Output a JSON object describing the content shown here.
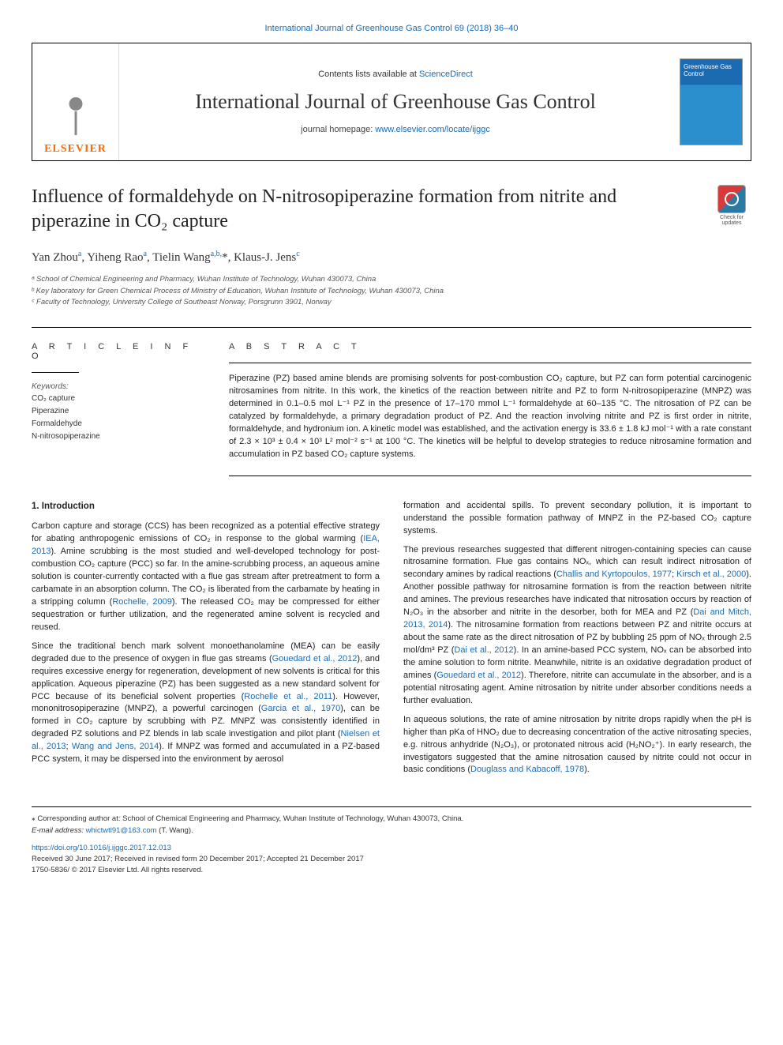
{
  "header": {
    "citation_link": "International Journal of Greenhouse Gas Control 69 (2018) 36–40",
    "contents_prefix": "Contents lists available at ",
    "contents_link": "ScienceDirect",
    "journal_name": "International Journal of Greenhouse Gas Control",
    "homepage_prefix": "journal homepage: ",
    "homepage_url": "www.elsevier.com/locate/ijggc",
    "elsevier_label": "ELSEVIER",
    "cover_title": "Greenhouse Gas Control"
  },
  "title": "Influence of formaldehyde on N-nitrosopiperazine formation from nitrite and piperazine in CO₂ capture",
  "updates_badge": "Check for updates",
  "authors_html": "Yan Zhou<sup>a</sup>, Yiheng Rao<sup>a</sup>, Tielin Wang<sup>a,b,</sup>*, Klaus-J. Jens<sup>c</sup>",
  "affiliations": [
    "ᵃ School of Chemical Engineering and Pharmacy, Wuhan Institute of Technology, Wuhan 430073, China",
    "ᵇ Key laboratory for Green Chemical Process of Ministry of Education, Wuhan Institute of Technology, Wuhan 430073, China",
    "ᶜ Faculty of Technology, University College of Southeast Norway, Porsgrunn 3901, Norway"
  ],
  "article_info_heading": "A R T I C L E  I N F O",
  "keywords_label": "Keywords:",
  "keywords": [
    "CO₂ capture",
    "Piperazine",
    "Formaldehyde",
    "N-nitrosopiperazine"
  ],
  "abstract_heading": "A B S T R A C T",
  "abstract": "Piperazine (PZ) based amine blends are promising solvents for post-combustion CO₂ capture, but PZ can form potential carcinogenic nitrosamines from nitrite. In this work, the kinetics of the reaction between nitrite and PZ to form N-nitrosopiperazine (MNPZ) was determined in 0.1–0.5 mol L⁻¹ PZ in the presence of 17–170 mmol L⁻¹ formaldehyde at 60–135 °C. The nitrosation of PZ can be catalyzed by formaldehyde, a primary degradation product of PZ. And the reaction involving nitrite and PZ is first order in nitrite, formaldehyde, and hydronium ion. A kinetic model was established, and the activation energy is 33.6 ± 1.8 kJ mol⁻¹ with a rate constant of 2.3 × 10³ ± 0.4 × 10³ L² mol⁻² s⁻¹ at 100 °C. The kinetics will be helpful to develop strategies to reduce nitrosamine formation and accumulation in PZ based CO₂ capture systems.",
  "intro_heading": "1. Introduction",
  "body_left": [
    "Carbon capture and storage (CCS) has been recognized as a potential effective strategy for abating anthropogenic emissions of CO₂ in response to the global warming (<a>IEA, 2013</a>). Amine scrubbing is the most studied and well-developed technology for post-combustion CO₂ capture (PCC) so far. In the amine-scrubbing process, an aqueous amine solution is counter-currently contacted with a flue gas stream after pretreatment to form a carbamate in an absorption column. The CO₂ is liberated from the carbamate by heating in a stripping column (<a>Rochelle, 2009</a>). The released CO₂ may be compressed for either sequestration or further utilization, and the regenerated amine solvent is recycled and reused.",
    "Since the traditional bench mark solvent monoethanolamine (MEA) can be easily degraded due to the presence of oxygen in flue gas streams (<a>Gouedard et al., 2012</a>), and requires excessive energy for regeneration, development of new solvents is critical for this application. Aqueous piperazine (PZ) has been suggested as a new standard solvent for PCC because of its beneficial solvent properties (<a>Rochelle et al., 2011</a>). However, mononitrosopiperazine (MNPZ), a powerful carcinogen (<a>Garcia et al., 1970</a>), can be formed in CO₂ capture by scrubbing with PZ. MNPZ was consistently identified in degraded PZ solutions and PZ blends in lab scale investigation and pilot plant (<a>Nielsen et al., 2013</a>; <a>Wang and Jens, 2014</a>). If MNPZ was formed and accumulated in a PZ-based PCC system, it may be dispersed into the environment by aerosol"
  ],
  "body_right": [
    "formation and accidental spills. To prevent secondary pollution, it is important to understand the possible formation pathway of MNPZ in the PZ-based CO₂ capture systems.",
    "The previous researches suggested that different nitrogen-containing species can cause nitrosamine formation. Flue gas contains NOₓ, which can result indirect nitrosation of secondary amines by radical reactions (<a>Challis and Kyrtopoulos, 1977</a>; <a>Kirsch et al., 2000</a>). Another possible pathway for nitrosamine formation is from the reaction between nitrite and amines. The previous researches have indicated that nitrosation occurs by reaction of N₂O₃ in the absorber and nitrite in the desorber, both for MEA and PZ (<a>Dai and Mitch, 2013, 2014</a>). The nitrosamine formation from reactions between PZ and nitrite occurs at about the same rate as the direct nitrosation of PZ by bubbling 25 ppm of NOₓ through 2.5 mol/dm³ PZ (<a>Dai et al., 2012</a>). In an amine-based PCC system, NOₓ can be absorbed into the amine solution to form nitrite. Meanwhile, nitrite is an oxidative degradation product of amines (<a>Gouedard et al., 2012</a>). Therefore, nitrite can accumulate in the absorber, and is a potential nitrosating agent. Amine nitrosation by nitrite under absorber conditions needs a further evaluation.",
    "In aqueous solutions, the rate of amine nitrosation by nitrite drops rapidly when the pH is higher than pKa of HNO₂ due to decreasing concentration of the active nitrosating species, e.g. nitrous anhydride (N₂O₃), or protonated nitrous acid (H₂NO₂⁺). In early research, the investigators suggested that the amine nitrosation caused by nitrite could not occur in basic conditions (<a>Douglass and Kabacoff, 1978</a>)."
  ],
  "footer": {
    "corr_author": "⁎ Corresponding author at: School of Chemical Engineering and Pharmacy, Wuhan Institute of Technology, Wuhan 430073, China.",
    "email_label": "E-mail address: ",
    "email": "whictwtl91@163.com",
    "email_suffix": " (T. Wang).",
    "doi": "https://doi.org/10.1016/j.ijggc.2017.12.013",
    "received": "Received 30 June 2017; Received in revised form 20 December 2017; Accepted 21 December 2017",
    "copyright": "1750-5836/ © 2017 Elsevier Ltd. All rights reserved."
  },
  "colors": {
    "link": "#1b6bb3",
    "elsevier_orange": "#ff6a00",
    "cover_top": "#1b6bb3",
    "cover_bottom": "#2a8fcc"
  }
}
